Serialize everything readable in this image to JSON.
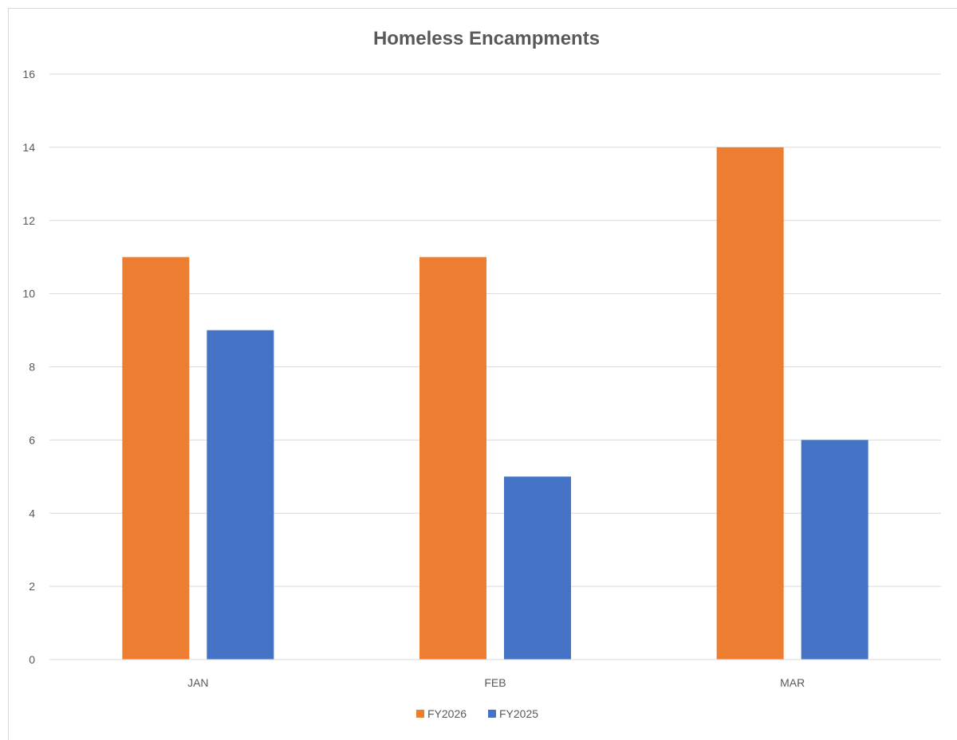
{
  "chart_data": {
    "type": "bar",
    "title": "Homeless Encampments",
    "xlabel": "",
    "ylabel": "",
    "categories": [
      "JAN",
      "FEB",
      "MAR"
    ],
    "series": [
      {
        "name": "FY2026",
        "color": "#ED7D31",
        "values": [
          11,
          11,
          14
        ]
      },
      {
        "name": "FY2025",
        "color": "#4472C4",
        "values": [
          9,
          5,
          6
        ]
      }
    ],
    "ylim": [
      0,
      16
    ],
    "yticks": [
      "0",
      "2",
      "4",
      "6",
      "8",
      "10",
      "12",
      "14",
      "16"
    ],
    "grid": true,
    "legend_position": "bottom"
  }
}
